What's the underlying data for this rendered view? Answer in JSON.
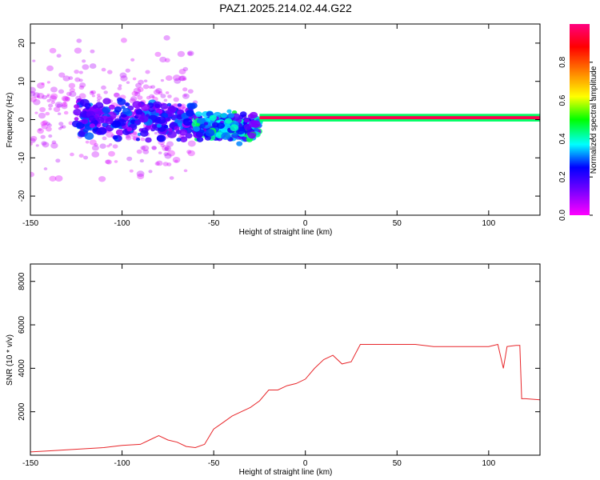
{
  "title": "PAZ1.2025.214.02.44.G22",
  "chart_data": [
    {
      "type": "heatmap",
      "xlabel": "Height of straight line (km)",
      "ylabel": "Frequency (Hz)",
      "xlim": [
        -150,
        128
      ],
      "ylim": [
        -25,
        25
      ],
      "xticks": [
        -150,
        -100,
        -50,
        0,
        50,
        100
      ],
      "yticks": [
        -20,
        -10,
        0,
        10,
        20
      ],
      "colorbar": {
        "label": "Normalized spectral amplitude",
        "range": [
          0,
          1
        ],
        "ticks": [
          0.0,
          0.2,
          0.4,
          0.6,
          0.8
        ],
        "colormap": [
          "#ff00ff",
          "#8000ff",
          "#0000ff",
          "#00ffff",
          "#00ff00",
          "#ffff00",
          "#ff8000",
          "#ff0000",
          "#ff0080"
        ]
      },
      "description_features": [
        {
          "x_range": [
            -150,
            -60
          ],
          "freq_center": 2,
          "freq_spread": 20,
          "amplitude": 0.05,
          "kind": "scattered"
        },
        {
          "x_range": [
            -125,
            -60
          ],
          "freq_center": 0,
          "freq_spread": 6,
          "amplitude": 0.2,
          "kind": "dense"
        },
        {
          "x_range": [
            -60,
            -25
          ],
          "freq_center": -2,
          "freq_spread": 4,
          "amplitude": 0.3,
          "kind": "dense"
        },
        {
          "x_range": [
            -25,
            128
          ],
          "freq_center": 0.5,
          "freq_spread": 1,
          "amplitude": 0.95,
          "kind": "line"
        }
      ]
    },
    {
      "type": "line",
      "xlabel": "Height of straight line (km)",
      "ylabel": "SNR (10 * v/v)",
      "xlim": [
        -150,
        128
      ],
      "ylim": [
        0,
        8800
      ],
      "xticks": [
        -150,
        -100,
        -50,
        0,
        50,
        100
      ],
      "yticks": [
        2000,
        4000,
        6000,
        8000
      ],
      "color": "#e8262a",
      "x": [
        -150,
        -140,
        -130,
        -120,
        -110,
        -100,
        -90,
        -85,
        -80,
        -75,
        -70,
        -65,
        -60,
        -55,
        -50,
        -45,
        -40,
        -35,
        -30,
        -25,
        -20,
        -15,
        -10,
        -5,
        0,
        5,
        10,
        15,
        20,
        25,
        30,
        35,
        40,
        50,
        60,
        70,
        80,
        90,
        100,
        105,
        108,
        110,
        115,
        117,
        118,
        120,
        128
      ],
      "y": [
        150,
        200,
        250,
        300,
        350,
        450,
        500,
        700,
        900,
        700,
        600,
        400,
        350,
        500,
        1200,
        1500,
        1800,
        2000,
        2200,
        2500,
        3000,
        3000,
        3200,
        3300,
        3500,
        4000,
        4400,
        4600,
        4200,
        4300,
        5100,
        5100,
        5100,
        5100,
        5100,
        5000,
        5000,
        5000,
        5000,
        5100,
        4000,
        5000,
        5050,
        5050,
        2600,
        2600,
        2550
      ]
    }
  ]
}
